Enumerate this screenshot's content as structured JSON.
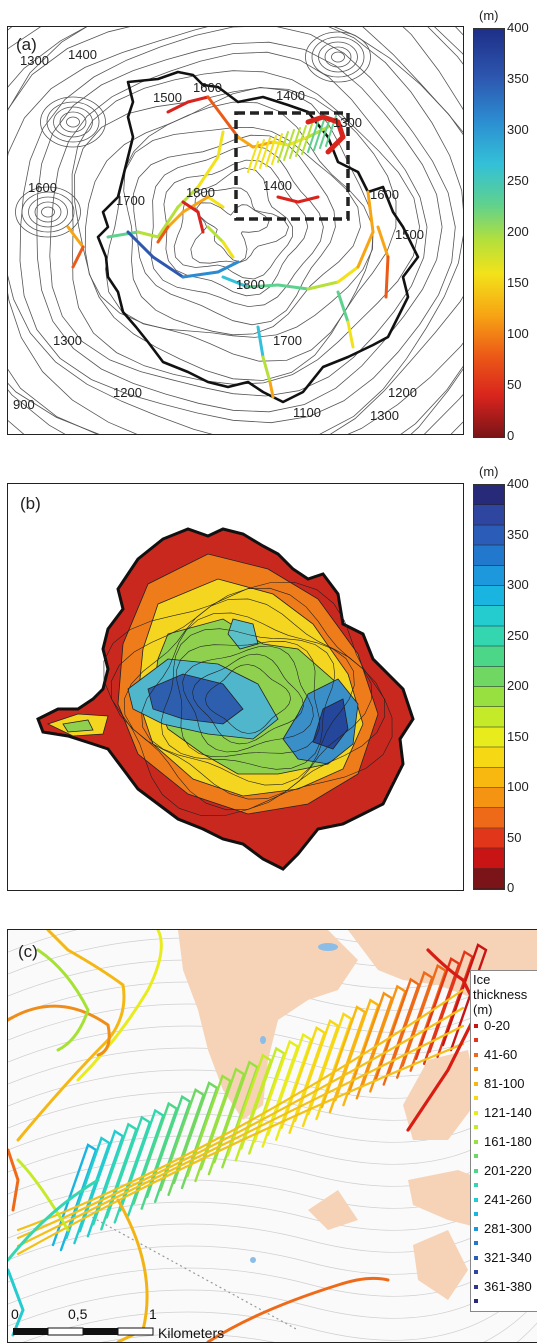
{
  "panel_a": {
    "label": "(a)",
    "contour_labels": [
      "1300",
      "1400",
      "1500",
      "1600",
      "1400",
      "1300",
      "1600",
      "1700",
      "1800",
      "1400",
      "1600",
      "1500",
      "1800",
      "1300",
      "1700",
      "900",
      "1200",
      "1100",
      "1200",
      "1300"
    ],
    "colorbar": {
      "unit": "(m)",
      "ticks": [
        "400",
        "350",
        "300",
        "250",
        "200",
        "150",
        "100",
        "50",
        "0"
      ]
    }
  },
  "panel_b": {
    "label": "(b)",
    "colorbar": {
      "unit": "(m)",
      "ticks": [
        "400",
        "350",
        "300",
        "250",
        "200",
        "150",
        "100",
        "50",
        "0"
      ]
    }
  },
  "panel_c": {
    "label": "(c)",
    "legend_title": [
      "Ice",
      "thickness",
      "(m)"
    ],
    "legend_items": [
      {
        "label": "0-20",
        "color": "#c81414"
      },
      {
        "label": "",
        "color": "#e2361a"
      },
      {
        "label": "41-60",
        "color": "#ef6a18"
      },
      {
        "label": "",
        "color": "#f59312"
      },
      {
        "label": "81-100",
        "color": "#f9b810"
      },
      {
        "label": "",
        "color": "#f7d814"
      },
      {
        "label": "121-140",
        "color": "#e9ec1c"
      },
      {
        "label": "",
        "color": "#c4ea28"
      },
      {
        "label": "161-180",
        "color": "#98e040"
      },
      {
        "label": "",
        "color": "#70d862"
      },
      {
        "label": "201-220",
        "color": "#4cd688"
      },
      {
        "label": "",
        "color": "#34d6b0"
      },
      {
        "label": "241-260",
        "color": "#24ccd0"
      },
      {
        "label": "",
        "color": "#1ab4e0"
      },
      {
        "label": "281-300",
        "color": "#1e98dc"
      },
      {
        "label": "",
        "color": "#2278cc"
      },
      {
        "label": "321-340",
        "color": "#2a5cb8"
      },
      {
        "label": "",
        "color": "#2e46a0"
      },
      {
        "label": "361-380",
        "color": "#30388c"
      },
      {
        "label": "",
        "color": "#262a78"
      }
    ],
    "scalebar": {
      "ticks": [
        "0",
        "0,5",
        "1"
      ],
      "unit": "Kilometers"
    }
  },
  "colors": {
    "thick_low": "#7a1418",
    "thick_high": "#1e3a8a"
  }
}
